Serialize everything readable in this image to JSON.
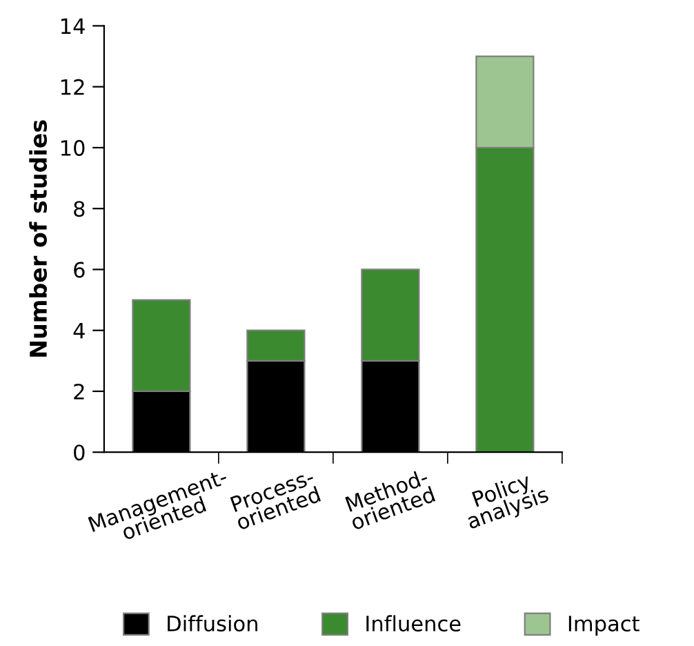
{
  "chart_data": {
    "type": "bar",
    "stacked": true,
    "ylabel": "Number of studies",
    "categories": [
      "Management-\noriented",
      "Process-\noriented",
      "Method-\noriented",
      "Policy\nanalysis"
    ],
    "series": [
      {
        "name": "Diffusion",
        "color": "#000000",
        "values": [
          2,
          3,
          3,
          0
        ]
      },
      {
        "name": "Influence",
        "color": "#3b8a2f",
        "values": [
          3,
          1,
          3,
          10
        ]
      },
      {
        "name": "Impact",
        "color": "#9dc592",
        "values": [
          0,
          0,
          0,
          3
        ]
      }
    ],
    "ylim": [
      0,
      14
    ],
    "yticks": [
      0,
      2,
      4,
      6,
      8,
      10,
      12,
      14
    ],
    "grid": false,
    "legend": "bottom"
  }
}
